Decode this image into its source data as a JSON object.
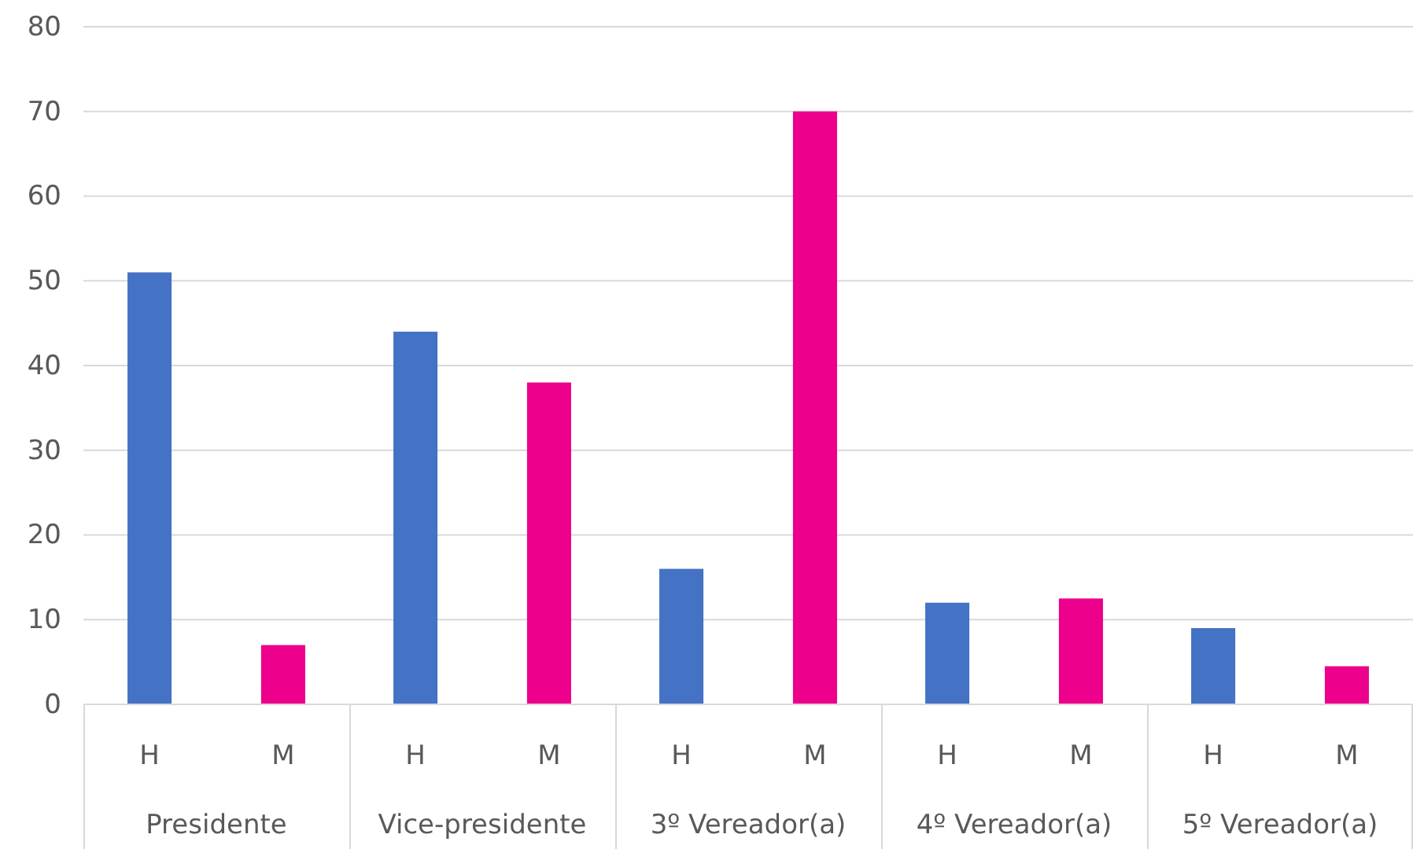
{
  "chart_data": {
    "type": "bar",
    "categories": [
      "Presidente",
      "Vice-presidente",
      "3º Vereador(a)",
      "4º Vereador(a)",
      "5º Vereador(a)"
    ],
    "series": [
      {
        "name": "H",
        "color": "#4472c4",
        "values": [
          51,
          44,
          16,
          12,
          9
        ]
      },
      {
        "name": "M",
        "color": "#ec008c",
        "values": [
          7,
          38,
          70,
          12.5,
          4.5
        ]
      }
    ],
    "ylim": [
      0,
      80
    ],
    "yticks": [
      0,
      10,
      20,
      30,
      40,
      50,
      60,
      70,
      80
    ],
    "grid": "y"
  }
}
